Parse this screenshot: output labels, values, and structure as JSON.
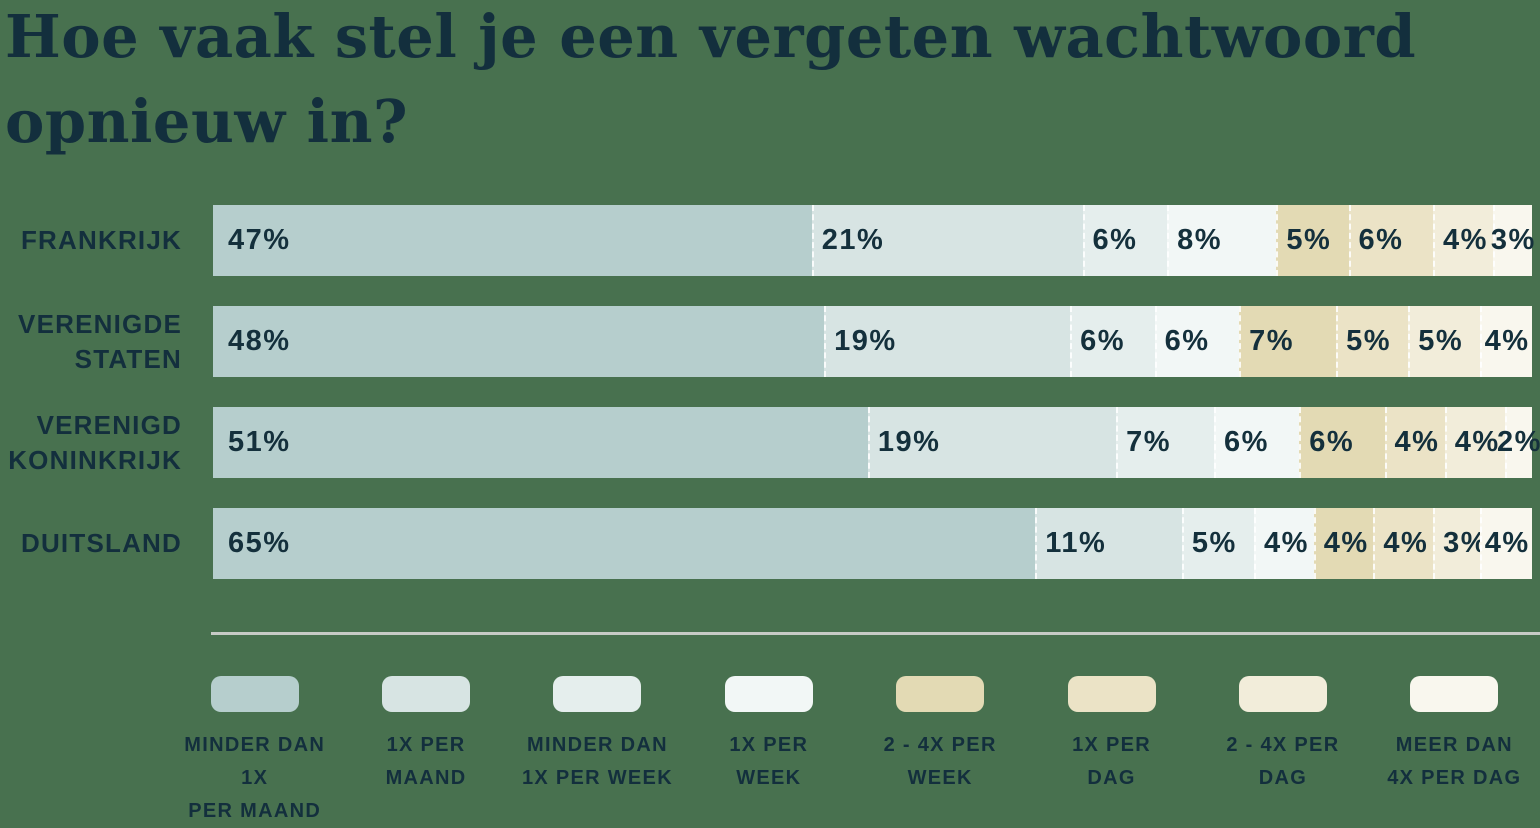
{
  "title": {
    "line1": "Hoe vaak stel je een vergeten wachtwoord",
    "line2": "opnieuw in?"
  },
  "colors": {
    "background": "#48714F",
    "text": "#132F3D",
    "divider": "#C7CBC6",
    "segment_separator": "#FFFFFF"
  },
  "chart_data": {
    "type": "bar",
    "subtype": "horizontal-stacked",
    "title": "Hoe vaak stel je een vergeten wachtwoord opnieuw in?",
    "unit": "%",
    "xlim": [
      0,
      100
    ],
    "grid": false,
    "legend_position": "bottom",
    "value_labels": "inside",
    "categories": [
      "Frankrijk",
      "Verenigde Staten",
      "Verenigd Koninkrijk",
      "Duitsland"
    ],
    "category_labels": [
      [
        "FRANKRIJK"
      ],
      [
        "VERENIGDE",
        "STATEN"
      ],
      [
        "VERENIGD",
        "KONINKRIJK"
      ],
      [
        "DUITSLAND"
      ]
    ],
    "series": [
      {
        "name": "Minder dan 1x per maand",
        "legend_lines": [
          "MINDER DAN 1X",
          "PER MAAND"
        ],
        "color": "#B6CECD",
        "values": [
          47,
          48,
          51,
          65
        ]
      },
      {
        "name": "1x per maand",
        "legend_lines": [
          "1X PER",
          "MAAND"
        ],
        "color": "#D7E4E3",
        "values": [
          21,
          19,
          19,
          11
        ]
      },
      {
        "name": "Minder dan 1x per week",
        "legend_lines": [
          "MINDER DAN",
          "1X PER WEEK"
        ],
        "color": "#E5EEED",
        "values": [
          6,
          6,
          7,
          5
        ]
      },
      {
        "name": "1x per week",
        "legend_lines": [
          "1X PER",
          "WEEK"
        ],
        "color": "#F2F7F6",
        "values": [
          8,
          6,
          6,
          4
        ]
      },
      {
        "name": "2 - 4x per week",
        "legend_lines": [
          "2 - 4X PER",
          "WEEK"
        ],
        "color": "#E3DAB4",
        "values": [
          5,
          7,
          6,
          4
        ]
      },
      {
        "name": "1x per dag",
        "legend_lines": [
          "1X PER",
          "DAG"
        ],
        "color": "#EBE3C6",
        "values": [
          6,
          5,
          4,
          4
        ]
      },
      {
        "name": "2 - 4x per dag",
        "legend_lines": [
          "2 - 4X PER",
          "DAG"
        ],
        "color": "#F2EDDA",
        "values": [
          4,
          5,
          4,
          3
        ]
      },
      {
        "name": "Meer dan 4x per dag",
        "legend_lines": [
          "MEER DAN",
          "4X PER DAG"
        ],
        "color": "#F9F7EE",
        "values": [
          3,
          4,
          2,
          4
        ]
      }
    ]
  }
}
